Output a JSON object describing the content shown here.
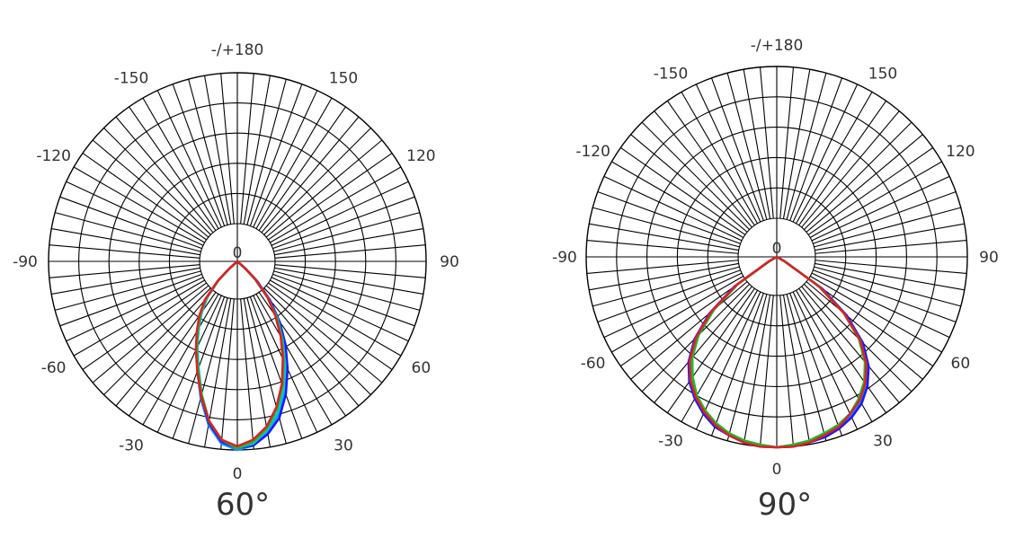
{
  "chart_data": [
    {
      "type": "polar-line",
      "caption": "60°",
      "angle_labels": [
        {
          "angle": 180,
          "text": "-/+180"
        },
        {
          "angle": -150,
          "text": "-150"
        },
        {
          "angle": 150,
          "text": "150"
        },
        {
          "angle": -120,
          "text": "-120"
        },
        {
          "angle": 120,
          "text": "120"
        },
        {
          "angle": -90,
          "text": "-90"
        },
        {
          "angle": 90,
          "text": "90"
        },
        {
          "angle": -60,
          "text": "-60"
        },
        {
          "angle": 60,
          "text": "60"
        },
        {
          "angle": -30,
          "text": "-30"
        },
        {
          "angle": 30,
          "text": "30"
        },
        {
          "angle": 0,
          "text": "0"
        }
      ],
      "center_label": "0",
      "radial_max": 1,
      "rings": [
        0.2,
        0.4,
        0.6,
        0.8,
        1.0
      ],
      "spoke_step_deg": 5,
      "grid": true,
      "series": [
        {
          "color": "#1e90ff",
          "points": [
            [
              -48,
              0.05
            ],
            [
              -45,
              0.14
            ],
            [
              -40,
              0.25
            ],
            [
              -35,
              0.33
            ],
            [
              -30,
              0.41
            ],
            [
              -25,
              0.51
            ],
            [
              -20,
              0.62
            ],
            [
              -15,
              0.75
            ],
            [
              -10,
              0.88
            ],
            [
              -5,
              0.97
            ],
            [
              0,
              1.0
            ],
            [
              5,
              0.98
            ],
            [
              10,
              0.92
            ],
            [
              15,
              0.84
            ],
            [
              20,
              0.73
            ],
            [
              25,
              0.61
            ],
            [
              30,
              0.49
            ],
            [
              35,
              0.37
            ],
            [
              40,
              0.25
            ],
            [
              45,
              0.13
            ],
            [
              48,
              0.05
            ]
          ]
        },
        {
          "color": "#1a1aff",
          "points": [
            [
              -48,
              0.05
            ],
            [
              -45,
              0.14
            ],
            [
              -40,
              0.25
            ],
            [
              -35,
              0.33
            ],
            [
              -30,
              0.41
            ],
            [
              -25,
              0.51
            ],
            [
              -20,
              0.61
            ],
            [
              -15,
              0.74
            ],
            [
              -10,
              0.87
            ],
            [
              -5,
              0.96
            ],
            [
              0,
              0.99
            ],
            [
              5,
              0.98
            ],
            [
              10,
              0.93
            ],
            [
              15,
              0.86
            ],
            [
              20,
              0.75
            ],
            [
              25,
              0.63
            ],
            [
              30,
              0.51
            ],
            [
              35,
              0.39
            ],
            [
              40,
              0.27
            ],
            [
              45,
              0.15
            ],
            [
              48,
              0.06
            ]
          ]
        },
        {
          "color": "#00c8c8",
          "points": [
            [
              -48,
              0.05
            ],
            [
              -45,
              0.14
            ],
            [
              -40,
              0.25
            ],
            [
              -35,
              0.33
            ],
            [
              -30,
              0.41
            ],
            [
              -25,
              0.5
            ],
            [
              -20,
              0.6
            ],
            [
              -15,
              0.73
            ],
            [
              -10,
              0.86
            ],
            [
              -5,
              0.95
            ],
            [
              0,
              0.99
            ],
            [
              5,
              0.97
            ],
            [
              10,
              0.91
            ],
            [
              15,
              0.83
            ],
            [
              20,
              0.72
            ],
            [
              25,
              0.6
            ],
            [
              30,
              0.48
            ],
            [
              35,
              0.37
            ],
            [
              40,
              0.25
            ],
            [
              45,
              0.13
            ],
            [
              48,
              0.05
            ]
          ]
        },
        {
          "color": "#22bb22",
          "points": [
            [
              -48,
              0.05
            ],
            [
              -45,
              0.14
            ],
            [
              -40,
              0.26
            ],
            [
              -35,
              0.34
            ],
            [
              -30,
              0.42
            ],
            [
              -25,
              0.51
            ],
            [
              -20,
              0.61
            ],
            [
              -15,
              0.73
            ],
            [
              -10,
              0.86
            ],
            [
              -5,
              0.95
            ],
            [
              0,
              0.99
            ],
            [
              5,
              0.96
            ],
            [
              10,
              0.9
            ],
            [
              15,
              0.81
            ],
            [
              20,
              0.7
            ],
            [
              25,
              0.58
            ],
            [
              30,
              0.47
            ],
            [
              35,
              0.36
            ],
            [
              40,
              0.25
            ],
            [
              45,
              0.13
            ],
            [
              48,
              0.05
            ]
          ]
        },
        {
          "color": "#dd2222",
          "points": [
            [
              -48,
              0.06
            ],
            [
              -45,
              0.15
            ],
            [
              -40,
              0.27
            ],
            [
              -35,
              0.35
            ],
            [
              -30,
              0.43
            ],
            [
              -25,
              0.52
            ],
            [
              -20,
              0.62
            ],
            [
              -15,
              0.74
            ],
            [
              -10,
              0.86
            ],
            [
              -5,
              0.95
            ],
            [
              0,
              0.98
            ],
            [
              5,
              0.95
            ],
            [
              10,
              0.89
            ],
            [
              15,
              0.8
            ],
            [
              20,
              0.69
            ],
            [
              25,
              0.57
            ],
            [
              30,
              0.46
            ],
            [
              35,
              0.35
            ],
            [
              40,
              0.25
            ],
            [
              45,
              0.14
            ],
            [
              48,
              0.06
            ]
          ]
        }
      ]
    },
    {
      "type": "polar-line",
      "caption": "90°",
      "angle_labels": [
        {
          "angle": 180,
          "text": "-/+180"
        },
        {
          "angle": -150,
          "text": "-150"
        },
        {
          "angle": 150,
          "text": "150"
        },
        {
          "angle": -120,
          "text": "-120"
        },
        {
          "angle": 120,
          "text": "120"
        },
        {
          "angle": -90,
          "text": "-90"
        },
        {
          "angle": 90,
          "text": "90"
        },
        {
          "angle": -60,
          "text": "-60"
        },
        {
          "angle": 60,
          "text": "60"
        },
        {
          "angle": -30,
          "text": "-30"
        },
        {
          "angle": 30,
          "text": "30"
        },
        {
          "angle": 0,
          "text": "0"
        }
      ],
      "center_label": "0",
      "radial_max": 1,
      "rings": [
        0.2,
        0.4,
        0.6,
        0.8,
        1.0
      ],
      "spoke_step_deg": 5,
      "grid": true,
      "series": [
        {
          "color": "#1e90ff",
          "points": [
            [
              -60,
              0.04
            ],
            [
              -55,
              0.25
            ],
            [
              -50,
              0.44
            ],
            [
              -45,
              0.59
            ],
            [
              -40,
              0.7
            ],
            [
              -35,
              0.78
            ],
            [
              -30,
              0.85
            ],
            [
              -25,
              0.9
            ],
            [
              -20,
              0.94
            ],
            [
              -15,
              0.97
            ],
            [
              -10,
              0.99
            ],
            [
              -5,
              1.0
            ],
            [
              0,
              1.0
            ],
            [
              5,
              1.0
            ],
            [
              10,
              0.99
            ],
            [
              15,
              0.97
            ],
            [
              20,
              0.95
            ],
            [
              25,
              0.92
            ],
            [
              30,
              0.88
            ],
            [
              35,
              0.82
            ],
            [
              40,
              0.74
            ],
            [
              45,
              0.63
            ],
            [
              50,
              0.47
            ],
            [
              55,
              0.28
            ],
            [
              60,
              0.05
            ]
          ]
        },
        {
          "color": "#1a1aff",
          "points": [
            [
              -60,
              0.05
            ],
            [
              -55,
              0.27
            ],
            [
              -50,
              0.46
            ],
            [
              -45,
              0.61
            ],
            [
              -40,
              0.72
            ],
            [
              -35,
              0.8
            ],
            [
              -30,
              0.86
            ],
            [
              -25,
              0.91
            ],
            [
              -20,
              0.95
            ],
            [
              -15,
              0.97
            ],
            [
              -10,
              0.99
            ],
            [
              -5,
              1.0
            ],
            [
              0,
              1.0
            ],
            [
              5,
              1.0
            ],
            [
              10,
              0.99
            ],
            [
              15,
              0.98
            ],
            [
              20,
              0.96
            ],
            [
              25,
              0.93
            ],
            [
              30,
              0.89
            ],
            [
              35,
              0.83
            ],
            [
              40,
              0.75
            ],
            [
              45,
              0.64
            ],
            [
              50,
              0.48
            ],
            [
              55,
              0.29
            ],
            [
              60,
              0.05
            ]
          ]
        },
        {
          "color": "#00c8c8",
          "points": [
            [
              -60,
              0.04
            ],
            [
              -55,
              0.25
            ],
            [
              -50,
              0.43
            ],
            [
              -45,
              0.58
            ],
            [
              -40,
              0.69
            ],
            [
              -35,
              0.77
            ],
            [
              -30,
              0.84
            ],
            [
              -25,
              0.89
            ],
            [
              -20,
              0.93
            ],
            [
              -15,
              0.96
            ],
            [
              -10,
              0.98
            ],
            [
              -5,
              0.99
            ],
            [
              0,
              1.0
            ],
            [
              5,
              0.99
            ],
            [
              10,
              0.98
            ],
            [
              15,
              0.96
            ],
            [
              20,
              0.94
            ],
            [
              25,
              0.91
            ],
            [
              30,
              0.87
            ],
            [
              35,
              0.81
            ],
            [
              40,
              0.73
            ],
            [
              45,
              0.62
            ],
            [
              50,
              0.46
            ],
            [
              55,
              0.27
            ],
            [
              60,
              0.05
            ]
          ]
        },
        {
          "color": "#22bb22",
          "points": [
            [
              -60,
              0.04
            ],
            [
              -55,
              0.25
            ],
            [
              -50,
              0.43
            ],
            [
              -45,
              0.58
            ],
            [
              -40,
              0.69
            ],
            [
              -35,
              0.77
            ],
            [
              -30,
              0.84
            ],
            [
              -25,
              0.89
            ],
            [
              -20,
              0.93
            ],
            [
              -15,
              0.96
            ],
            [
              -10,
              0.98
            ],
            [
              -5,
              0.99
            ],
            [
              0,
              1.0
            ],
            [
              5,
              0.99
            ],
            [
              10,
              0.98
            ],
            [
              15,
              0.96
            ],
            [
              20,
              0.94
            ],
            [
              25,
              0.91
            ],
            [
              30,
              0.86
            ],
            [
              35,
              0.8
            ],
            [
              40,
              0.72
            ],
            [
              45,
              0.61
            ],
            [
              50,
              0.46
            ],
            [
              55,
              0.27
            ],
            [
              60,
              0.05
            ]
          ]
        },
        {
          "color": "#dd2222",
          "points": [
            [
              -60,
              0.05
            ],
            [
              -55,
              0.26
            ],
            [
              -50,
              0.45
            ],
            [
              -45,
              0.6
            ],
            [
              -40,
              0.71
            ],
            [
              -35,
              0.79
            ],
            [
              -30,
              0.85
            ],
            [
              -25,
              0.9
            ],
            [
              -20,
              0.94
            ],
            [
              -15,
              0.97
            ],
            [
              -10,
              0.99
            ],
            [
              -5,
              1.0
            ],
            [
              0,
              1.0
            ],
            [
              5,
              1.0
            ],
            [
              10,
              0.99
            ],
            [
              15,
              0.97
            ],
            [
              20,
              0.95
            ],
            [
              25,
              0.91
            ],
            [
              30,
              0.87
            ],
            [
              35,
              0.81
            ],
            [
              40,
              0.73
            ],
            [
              45,
              0.62
            ],
            [
              50,
              0.46
            ],
            [
              55,
              0.27
            ],
            [
              60,
              0.05
            ]
          ]
        }
      ]
    }
  ]
}
